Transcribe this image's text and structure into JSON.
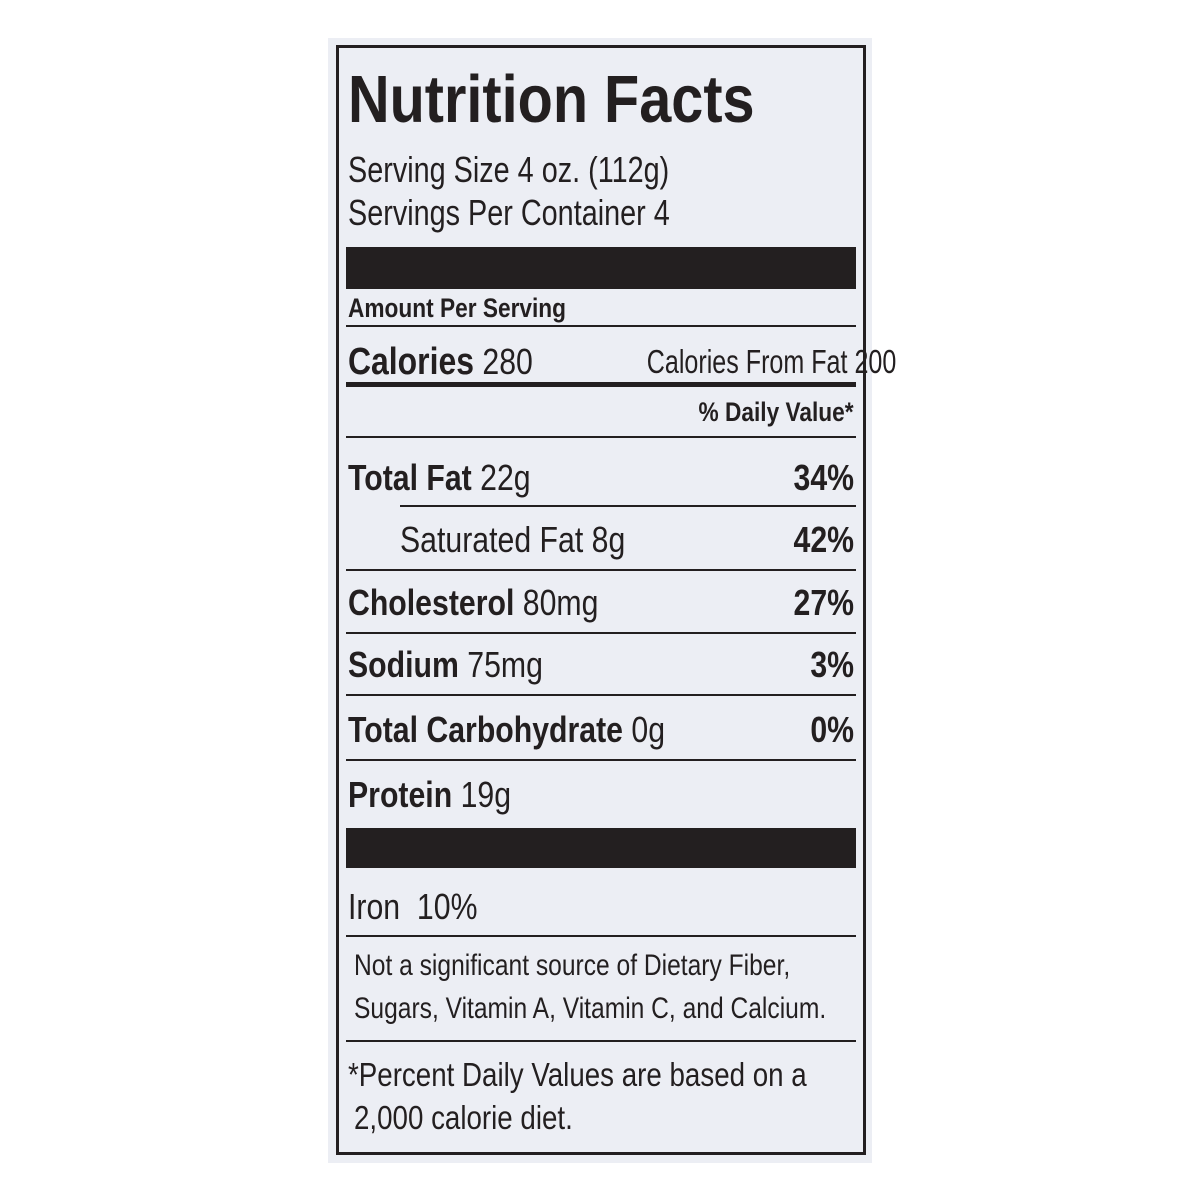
{
  "title": "Nutrition Facts",
  "serving_size": "Serving Size 4 oz. (112g)",
  "servings_per_container": "Servings Per Container 4",
  "amount_per_serving": "Amount Per Serving",
  "calories": {
    "label": "Calories",
    "amount": "280",
    "from_fat_label": "Calories From Fat",
    "from_fat": "200"
  },
  "daily_value_header": "% Daily Value*",
  "nutrients": [
    {
      "label": "Total Fat",
      "amount": "22g",
      "daily_value": "34%"
    },
    {
      "label": "Saturated Fat",
      "amount": "8g",
      "daily_value": "42%"
    },
    {
      "label": "Cholesterol",
      "amount": "80mg",
      "daily_value": "27%"
    },
    {
      "label": "Sodium",
      "amount": "75mg",
      "daily_value": "3%"
    },
    {
      "label": "Total Carbohydrate",
      "amount": "0g",
      "daily_value": "0%"
    },
    {
      "label": "Protein",
      "amount": "19g"
    }
  ],
  "iron": {
    "label": "Iron",
    "value": "10%"
  },
  "note": [
    "Not a significant source of Dietary Fiber,",
    "Sugars, Vitamin A, Vitamin C, and Calcium."
  ],
  "footnote": [
    "*Percent Daily Values are based on a",
    "2,000 calorie diet."
  ]
}
